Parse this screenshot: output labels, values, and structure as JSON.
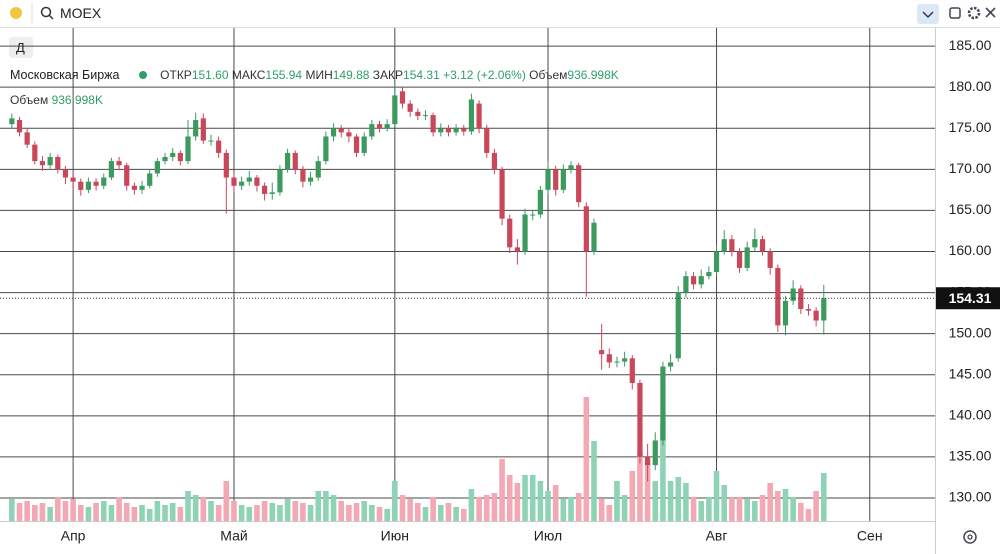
{
  "toolbar": {
    "search": "MOEX",
    "interval_button": "Д"
  },
  "chart_data": {
    "type": "candlestick",
    "title": "Московская Биржа",
    "legend": [
      {
        "label": "ОТКР",
        "value": "151.60"
      },
      {
        "label": "МАКС",
        "value": "155.94"
      },
      {
        "label": "МИН",
        "value": "149.88"
      },
      {
        "label": "ЗАКР",
        "value": "154.31"
      }
    ],
    "change": "+3.12 (+2.06%)",
    "up_color": "#3c9a5f",
    "down_color": "#c8475a",
    "categories": [
      null,
      null,
      null,
      null,
      null,
      null,
      null,
      null,
      "Апр",
      null,
      null,
      null,
      null,
      null,
      null,
      null,
      null,
      null,
      null,
      null,
      null,
      null,
      null,
      null,
      null,
      null,
      null,
      null,
      null,
      "Май",
      null,
      null,
      null,
      null,
      null,
      null,
      null,
      null,
      null,
      null,
      null,
      null,
      null,
      null,
      null,
      null,
      null,
      null,
      null,
      null,
      "Июн",
      null,
      null,
      null,
      null,
      null,
      null,
      null,
      null,
      null,
      null,
      null,
      null,
      null,
      null,
      null,
      null,
      null,
      null,
      null,
      "Июл",
      null,
      null,
      null,
      null,
      null,
      null,
      null,
      null,
      null,
      null,
      null,
      null,
      null,
      null,
      null,
      null,
      null,
      null,
      null,
      null,
      null,
      "Авг",
      null,
      null,
      null,
      null,
      null,
      null,
      null,
      null,
      null,
      null,
      null,
      null,
      null,
      null,
      null,
      null,
      null,
      null,
      null,
      "Сен"
    ],
    "open": [
      175.5,
      176.0,
      174.5,
      173.0,
      171.0,
      170.5,
      171.5,
      170.0,
      169.0,
      168.5,
      167.5,
      168.5,
      168.0,
      169.0,
      171.0,
      170.5,
      168.0,
      167.5,
      168.0,
      169.5,
      171.0,
      171.5,
      172.0,
      171.0,
      174.0,
      176.2,
      173.5,
      173.5,
      172.0,
      169.0,
      168.0,
      168.5,
      169.0,
      168.0,
      167.0,
      167.2,
      170.0,
      172.0,
      170.0,
      168.5,
      169.0,
      171.0,
      174.0,
      175.0,
      174.5,
      174.0,
      172.0,
      174.0,
      175.5,
      175.0,
      175.5,
      179.5,
      178.0,
      177.0,
      176.5,
      176.6,
      174.5,
      175.0,
      174.5,
      175.0,
      174.6,
      178.0,
      175.0,
      172.0,
      170.0,
      164.0,
      160.5,
      160.0,
      164.5,
      164.5,
      167.5,
      170.0,
      167.5,
      170.0,
      170.5,
      165.5,
      160.0,
      148.0,
      147.5,
      146.5,
      146.6,
      147.0,
      144.0,
      135.0,
      134.0,
      137.0,
      146.0,
      147.0,
      155.0,
      157.0,
      156.0,
      157.0,
      157.5,
      160.0,
      161.5,
      160.0,
      158.0,
      160.5,
      161.5,
      160.0,
      158.0,
      151.0,
      154.0,
      155.5,
      153.0,
      152.8,
      151.6,
      null,
      null,
      null,
      null,
      null,
      null
    ],
    "high": [
      176.8,
      176.4,
      175.0,
      173.4,
      171.6,
      172.0,
      171.8,
      170.4,
      169.6,
      168.9,
      169.0,
      168.9,
      169.5,
      171.4,
      171.5,
      170.8,
      168.4,
      168.6,
      170.0,
      171.4,
      172.0,
      172.6,
      172.3,
      176.0,
      176.9,
      176.8,
      174.2,
      174.0,
      172.4,
      169.6,
      169.1,
      169.8,
      169.3,
      168.4,
      168.4,
      170.5,
      172.5,
      172.3,
      170.4,
      169.7,
      171.6,
      174.6,
      175.6,
      175.4,
      175.0,
      174.3,
      174.5,
      176.0,
      175.9,
      176.1,
      180.2,
      180.0,
      178.4,
      177.4,
      177.2,
      176.9,
      175.6,
      175.4,
      175.5,
      175.4,
      179.2,
      178.4,
      175.4,
      172.5,
      170.3,
      164.5,
      161.5,
      165.2,
      165.0,
      168.0,
      171.0,
      170.4,
      170.6,
      171.0,
      170.8,
      166.0,
      164.0,
      151.2,
      148.2,
      147.2,
      147.8,
      147.4,
      144.4,
      136.6,
      138.0,
      146.6,
      147.5,
      155.8,
      157.6,
      157.5,
      157.8,
      158.2,
      160.8,
      162.6,
      162.0,
      160.4,
      161.2,
      162.8,
      161.9,
      160.4,
      158.4,
      154.6,
      156.5,
      155.9,
      153.6,
      153.2,
      155.94,
      null,
      null,
      null,
      null,
      null,
      null
    ],
    "low": [
      174.9,
      174.0,
      172.6,
      170.6,
      169.8,
      170.1,
      169.5,
      168.2,
      167.6,
      166.8,
      167.1,
      167.4,
      167.6,
      168.7,
      169.9,
      167.4,
      166.9,
      167.0,
      167.7,
      169.1,
      170.6,
      171.0,
      170.5,
      170.6,
      173.5,
      173.1,
      172.9,
      171.4,
      164.6,
      167.2,
      167.5,
      168.0,
      167.3,
      166.2,
      166.3,
      166.8,
      169.6,
      169.4,
      167.8,
      168.0,
      168.6,
      170.6,
      173.4,
      173.9,
      173.3,
      171.5,
      171.6,
      173.6,
      174.5,
      174.6,
      175.1,
      177.4,
      176.4,
      176.0,
      176.0,
      174.0,
      174.0,
      174.0,
      174.1,
      174.1,
      174.2,
      174.4,
      171.4,
      169.4,
      163.2,
      159.8,
      158.4,
      159.6,
      163.8,
      164.1,
      167.0,
      166.8,
      167.1,
      169.5,
      165.4,
      154.5,
      159.6,
      145.6,
      145.8,
      145.9,
      146.0,
      143.2,
      134.2,
      132.0,
      133.4,
      136.4,
      145.4,
      146.6,
      154.4,
      155.4,
      155.5,
      156.6,
      157.0,
      159.6,
      159.4,
      157.4,
      157.6,
      160.0,
      159.5,
      157.2,
      150.2,
      149.8,
      153.5,
      152.4,
      152.2,
      150.9,
      149.88,
      null,
      null,
      null,
      null,
      null,
      null
    ],
    "close": [
      176.2,
      174.5,
      173.0,
      171.0,
      170.5,
      171.5,
      170.0,
      169.0,
      168.5,
      167.5,
      168.5,
      168.0,
      169.0,
      171.0,
      170.5,
      168.0,
      167.5,
      168.0,
      169.5,
      171.0,
      171.5,
      172.0,
      171.0,
      174.0,
      176.0,
      173.5,
      173.5,
      172.0,
      169.0,
      168.0,
      168.5,
      169.0,
      168.0,
      167.0,
      167.2,
      170.0,
      172.0,
      170.0,
      168.5,
      169.0,
      171.0,
      174.0,
      175.0,
      174.5,
      174.0,
      172.0,
      174.0,
      175.5,
      175.0,
      175.5,
      179.0,
      178.0,
      177.0,
      176.5,
      176.6,
      174.5,
      175.0,
      174.5,
      175.0,
      174.6,
      178.5,
      175.0,
      172.0,
      170.0,
      164.0,
      160.5,
      160.0,
      164.5,
      164.5,
      167.5,
      170.0,
      167.5,
      170.0,
      170.5,
      166.0,
      160.0,
      163.5,
      147.5,
      146.5,
      146.6,
      147.0,
      144.0,
      135.0,
      134.0,
      137.0,
      146.0,
      146.5,
      155.0,
      157.0,
      156.0,
      157.0,
      157.5,
      160.0,
      161.5,
      160.0,
      158.0,
      160.5,
      161.5,
      160.0,
      158.0,
      151.0,
      154.0,
      155.5,
      153.0,
      152.8,
      151.6,
      154.31,
      null,
      null,
      null,
      null,
      null,
      null
    ],
    "volume": {
      "name": "Объем",
      "value_label": "936.998K",
      "up_color": "#8fd3b6",
      "down_color": "#f3a8b3",
      "values": [
        429000,
        351000,
        390000,
        312000,
        351000,
        273000,
        468000,
        390000,
        429000,
        312000,
        273000,
        351000,
        390000,
        312000,
        468000,
        351000,
        273000,
        312000,
        234000,
        390000,
        312000,
        351000,
        273000,
        585000,
        507000,
        468000,
        390000,
        312000,
        780000,
        390000,
        312000,
        273000,
        312000,
        390000,
        351000,
        312000,
        429000,
        390000,
        351000,
        312000,
        585000,
        585000,
        507000,
        390000,
        312000,
        351000,
        390000,
        312000,
        273000,
        234000,
        780000,
        507000,
        429000,
        351000,
        273000,
        468000,
        312000,
        351000,
        273000,
        234000,
        624000,
        468000,
        507000,
        546000,
        1209000,
        897000,
        741000,
        897000,
        897000,
        780000,
        585000,
        702000,
        429000,
        468000,
        546000,
        2418000,
        1560000,
        429000,
        312000,
        780000,
        507000,
        975000,
        1365000,
        1131000,
        780000,
        1950000,
        780000,
        858000,
        741000,
        468000,
        390000,
        468000,
        975000,
        702000,
        468000,
        468000,
        429000,
        390000,
        507000,
        741000,
        585000,
        624000,
        468000,
        351000,
        234000,
        585000,
        936998,
        null,
        null,
        null,
        null,
        null,
        null
      ]
    },
    "ylim": [
      127.2,
      187.2
    ],
    "yticks": [
      {
        "value": 185,
        "label": "185.00"
      },
      {
        "value": 180,
        "label": "180.00"
      },
      {
        "value": 175,
        "label": "175.00"
      },
      {
        "value": 170,
        "label": "170.00"
      },
      {
        "value": 165,
        "label": "165.00"
      },
      {
        "value": 160,
        "label": "160.00"
      },
      {
        "value": 155,
        "label": "155.00"
      },
      {
        "value": 150,
        "label": "150.00"
      },
      {
        "value": 145,
        "label": "145.00"
      },
      {
        "value": 140,
        "label": "140.00"
      },
      {
        "value": 135,
        "label": "135.00"
      },
      {
        "value": 130,
        "label": "130.00"
      }
    ],
    "grid": true
  }
}
